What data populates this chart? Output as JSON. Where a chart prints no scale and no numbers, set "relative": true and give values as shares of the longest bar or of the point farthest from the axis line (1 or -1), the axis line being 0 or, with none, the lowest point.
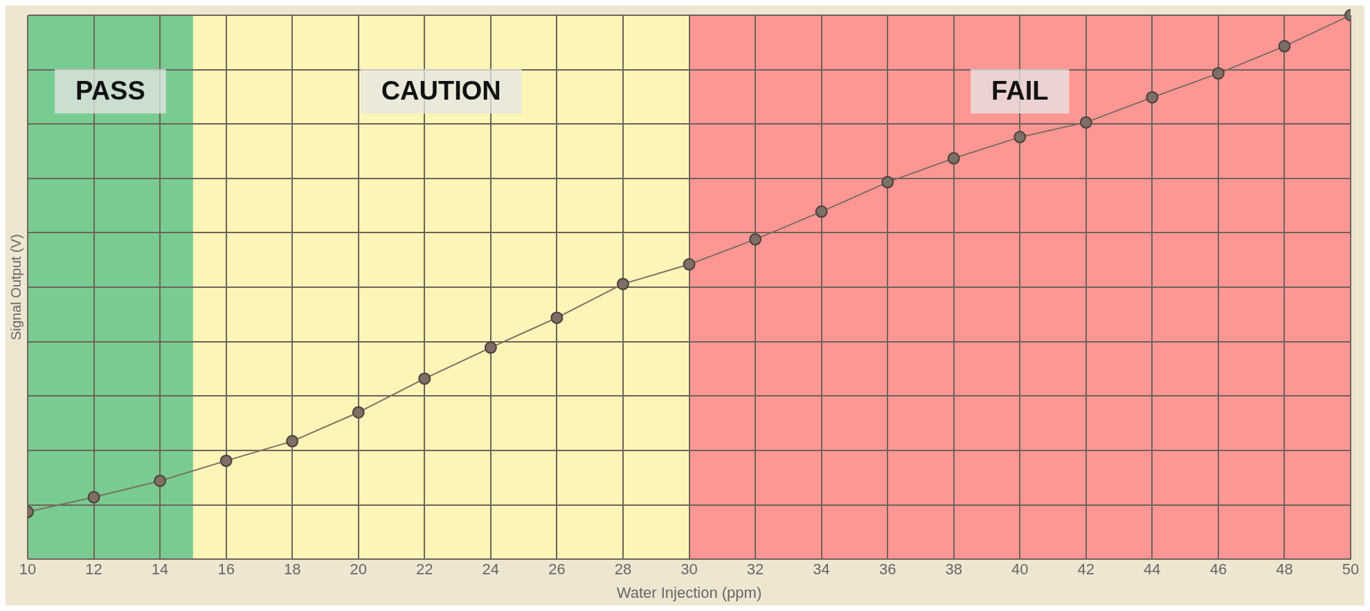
{
  "chart_data": {
    "type": "line",
    "xlabel": "Water Injection (ppm)",
    "ylabel": "Signal Output (V)",
    "relative": true,
    "xlim": [
      10,
      50
    ],
    "xticks": [
      10,
      12,
      14,
      16,
      18,
      20,
      22,
      24,
      26,
      28,
      30,
      32,
      34,
      36,
      38,
      40,
      42,
      44,
      46,
      48,
      50
    ],
    "x": [
      10,
      12,
      14,
      16,
      18,
      20,
      22,
      24,
      26,
      28,
      30,
      32,
      34,
      36,
      38,
      40,
      42,
      44,
      46,
      48,
      50
    ],
    "series": [
      {
        "color": "#7d6e66",
        "values": [
          0.087,
          0.114,
          0.144,
          0.181,
          0.217,
          0.27,
          0.332,
          0.389,
          0.444,
          0.506,
          0.542,
          0.588,
          0.639,
          0.693,
          0.737,
          0.776,
          0.803,
          0.849,
          0.893,
          0.943,
          1
        ]
      }
    ],
    "bands": [
      {
        "axis": "x",
        "from": 10,
        "to": 15,
        "label": "PASS",
        "color": "#6cc98a"
      },
      {
        "axis": "x",
        "from": 15,
        "to": 30,
        "label": "CAUTION",
        "color": "#fcf6b4"
      },
      {
        "axis": "x",
        "from": 30,
        "to": 50,
        "label": "FAIL",
        "color": "#ff8e8c"
      }
    ],
    "grid": true,
    "marker": "circle",
    "line_style": "solid",
    "legend": false
  }
}
